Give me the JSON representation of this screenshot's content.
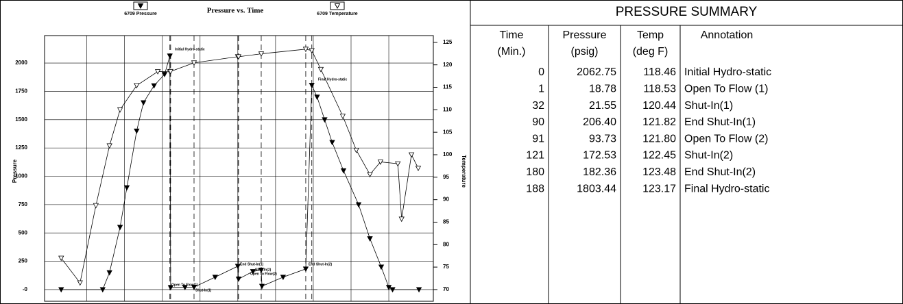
{
  "chart_data": {
    "type": "line",
    "title": "Pressure vs. Time",
    "y_label": "Pressure",
    "y2_label": "Temperature",
    "xlim": [
      -166,
      349
    ],
    "xticks": [
      -110,
      -60,
      -10,
      40,
      90,
      140,
      190,
      240,
      290
    ],
    "ylim": [
      -103,
      2242
    ],
    "yticks": [
      {
        "value": 0,
        "label": "-0"
      },
      250,
      500,
      750,
      1000,
      1250,
      1500,
      1750,
      2000
    ],
    "y2lim": [
      67.4,
      126.5
    ],
    "y2ticks": [
      70,
      75,
      80,
      85,
      90,
      95,
      100,
      105,
      110,
      115,
      120,
      125
    ],
    "grid": true,
    "series": [
      {
        "name": "6709 Pressure",
        "color": "#000000",
        "marker": "filled-triangle",
        "x": [
          -144,
          -89,
          -80,
          -66,
          -57,
          -44,
          -35,
          -21,
          -7,
          0,
          1,
          20,
          32,
          60,
          90,
          91,
          110,
          121,
          122,
          150,
          180,
          188,
          195,
          205,
          215,
          230,
          250,
          265,
          280,
          290,
          295,
          330
        ],
        "values": [
          0,
          0,
          150,
          550,
          900,
          1400,
          1650,
          1800,
          1900,
          2062.75,
          18.78,
          20,
          21.55,
          110,
          206.4,
          93.73,
          160,
          172.53,
          30,
          110,
          182.36,
          1803.44,
          1700,
          1500,
          1300,
          1050,
          750,
          450,
          200,
          20,
          0,
          0
        ]
      },
      {
        "name": "6709 Temperature",
        "color": "#000000",
        "marker": "open-triangle",
        "axis": "y2",
        "x": [
          -144,
          -119,
          -98,
          -80,
          -66,
          -44,
          -16,
          0,
          1,
          32,
          90,
          91,
          121,
          180,
          188,
          200,
          229,
          247,
          265,
          279,
          302,
          307,
          320,
          329
        ],
        "values": [
          77,
          71.5,
          88.7,
          102,
          110,
          115.4,
          118.5,
          118.46,
          118.53,
          120.44,
          121.82,
          121.8,
          122.45,
          123.48,
          123.17,
          119,
          108.6,
          101,
          95.6,
          98.4,
          98,
          85.7,
          100,
          97
        ]
      }
    ],
    "annotations": [
      "Initial Hydro-static",
      "Final Hydro-static",
      "Open To Flow(1)",
      "Shut-In(1)",
      "End Shut-In(1)",
      "Open To Flow(2)",
      "Shut-In(2)",
      "End Shut-In(2)"
    ]
  },
  "table": {
    "title": "PRESSURE SUMMARY",
    "header": [
      [
        "Time",
        "(Min.)"
      ],
      [
        "Pressure",
        "(psig)"
      ],
      [
        "Temp",
        "(deg F)"
      ],
      [
        "Annotation"
      ]
    ],
    "rows": [
      [
        "0",
        "2062.75",
        "118.46",
        "Initial Hydro-static"
      ],
      [
        "1",
        "18.78",
        "118.53",
        "Open To Flow (1)"
      ],
      [
        "32",
        "21.55",
        "120.44",
        "Shut-In(1)"
      ],
      [
        "90",
        "206.40",
        "121.82",
        "End Shut-In(1)"
      ],
      [
        "91",
        "93.73",
        "121.80",
        "Open To Flow (2)"
      ],
      [
        "121",
        "172.53",
        "122.45",
        "Shut-In(2)"
      ],
      [
        "180",
        "182.36",
        "123.48",
        "End Shut-In(2)"
      ],
      [
        "188",
        "1803.44",
        "123.17",
        "Final Hydro-static"
      ]
    ]
  }
}
